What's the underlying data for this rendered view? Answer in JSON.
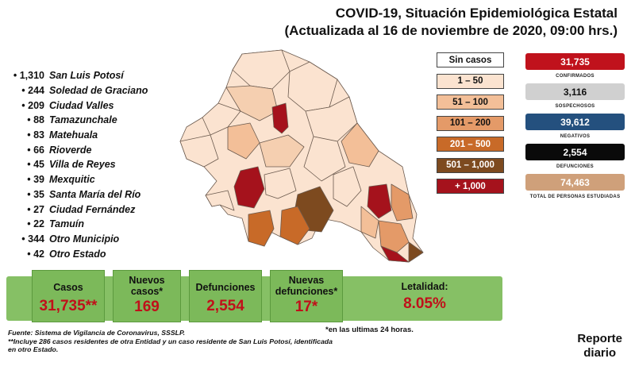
{
  "header": {
    "title_line1": "COVID-19, Situación Epidemiológica Estatal",
    "title_line2": "(Actualizada al 16 de noviembre de 2020, 09:00 hrs.)"
  },
  "municipalities": [
    {
      "count": "1,310",
      "name": "San Luis Potosí"
    },
    {
      "count": "244",
      "name": "Soledad de Graciano"
    },
    {
      "count": "209",
      "name": "Ciudad Valles"
    },
    {
      "count": "88",
      "name": "Tamazunchale"
    },
    {
      "count": "83",
      "name": "Matehuala"
    },
    {
      "count": "66",
      "name": "Rioverde"
    },
    {
      "count": "45",
      "name": "Villa de Reyes"
    },
    {
      "count": "39",
      "name": "Mexquitic"
    },
    {
      "count": "35",
      "name": "Santa María del Río"
    },
    {
      "count": "27",
      "name": "Ciudad Fernández"
    },
    {
      "count": "22",
      "name": "Tamuín"
    },
    {
      "count": "344",
      "name": "Otro Municipio"
    },
    {
      "count": "42",
      "name": "Otro Estado"
    }
  ],
  "legend": [
    {
      "label": "Sin casos",
      "color": "#ffffff",
      "text_color": "#111111"
    },
    {
      "label": "1 – 50",
      "color": "#fbe3d0",
      "text_color": "#111111"
    },
    {
      "label": "51 – 100",
      "color": "#f3bf98",
      "text_color": "#111111"
    },
    {
      "label": "101 – 200",
      "color": "#e49a68",
      "text_color": "#111111"
    },
    {
      "label": "201 – 500",
      "color": "#c86a28",
      "text_color": "#ffffff"
    },
    {
      "label": "501 – 1,000",
      "color": "#7d4a1f",
      "text_color": "#ffffff"
    },
    {
      "label": "+ 1,000",
      "color": "#a5121c",
      "text_color": "#ffffff"
    }
  ],
  "stats": [
    {
      "value": "31,735",
      "label": "CONFIRMADOS",
      "color": "#c0121c",
      "text_color": "#ffffff"
    },
    {
      "value": "3,116",
      "label": "SOSPECHOSOS",
      "color": "#d0d0d0",
      "text_color": "#111111"
    },
    {
      "value": "39,612",
      "label": "NEGATIVOS",
      "color": "#24507e",
      "text_color": "#ffffff"
    },
    {
      "value": "2,554",
      "label": "DEFUNCIONES",
      "color": "#0a0a0a",
      "text_color": "#ffffff"
    },
    {
      "value": "74,463",
      "label": "TOTAL DE PERSONAS ESTUDIADAS",
      "color": "#cfa07a",
      "text_color": "#ffffff"
    }
  ],
  "summary": {
    "cases_label": "Casos",
    "cases_value": "31,735**",
    "new_cases_label1": "Nuevos",
    "new_cases_label2": "casos*",
    "new_cases_value": "169",
    "deaths_label": "Defunciones",
    "deaths_value": "2,554",
    "new_deaths_label1": "Nuevas",
    "new_deaths_label2": "defunciones*",
    "new_deaths_value": "17*",
    "lethality_label": "Letalidad:",
    "lethality_value": "8.05%"
  },
  "footer": {
    "note_24h": "*en las ultimas 24 horas.",
    "source": "Fuente: Sistema de Vigilancia de Coronavirus, SSSLP.",
    "note_line1": "**Incluye 286 casos residentes de otra Entidad y un caso residente de San Luis Potosí, identificada",
    "note_line2": "en otro Estado.",
    "report_line1": "Reporte",
    "report_line2": "diario"
  }
}
